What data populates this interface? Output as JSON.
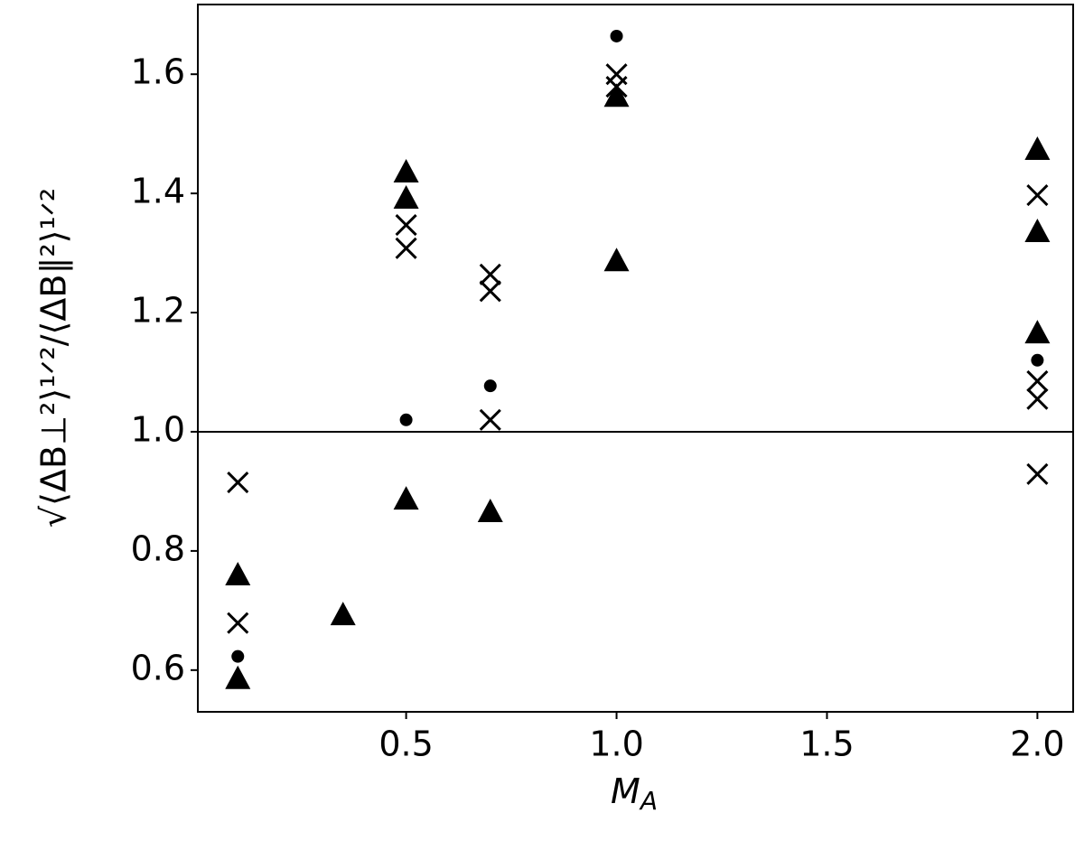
{
  "chart_data": {
    "type": "scatter",
    "xlabel": "M",
    "xlabel_sub": "A",
    "ylabel": "√⟨ΔB⊥²⟩¹ᐟ²/⟨ΔB∥²⟩¹ᐟ²",
    "xlim": [
      0.005,
      2.085
    ],
    "ylim": [
      0.53,
      1.717
    ],
    "xticks": [
      0.5,
      {
        "value": 1,
        "label": "1.0"
      },
      1.5,
      {
        "value": 2,
        "label": "2.0"
      }
    ],
    "yticks": [
      0.6,
      0.8,
      {
        "value": 1,
        "label": "1.0"
      },
      1.2,
      1.4,
      1.6
    ],
    "reference_line": 1,
    "series": [
      {
        "marker": "triangle",
        "color": "#000000",
        "x": [
          0.1,
          0.1,
          0.35,
          0.5,
          0.5,
          0.5,
          0.7,
          1,
          1,
          2,
          2,
          2
        ],
        "values": [
          0.759,
          0.585,
          0.692,
          1.435,
          1.391,
          0.886,
          0.865,
          1.562,
          1.286,
          1.473,
          1.335,
          1.165
        ]
      },
      {
        "marker": "cross",
        "color": "#000000",
        "x": [
          0.1,
          0.1,
          0.5,
          0.5,
          0.7,
          0.7,
          0.7,
          1,
          1,
          2,
          2,
          2,
          2
        ],
        "values": [
          0.915,
          0.679,
          1.347,
          1.308,
          1.264,
          1.236,
          1.02,
          1.6,
          1.579,
          1.397,
          1.085,
          1.055,
          0.929
        ]
      },
      {
        "marker": "dot",
        "color": "#000000",
        "x": [
          0.1,
          0.5,
          0.7,
          1,
          2
        ],
        "values": [
          0.623,
          1.02,
          1.077,
          1.664,
          1.12
        ]
      }
    ]
  }
}
